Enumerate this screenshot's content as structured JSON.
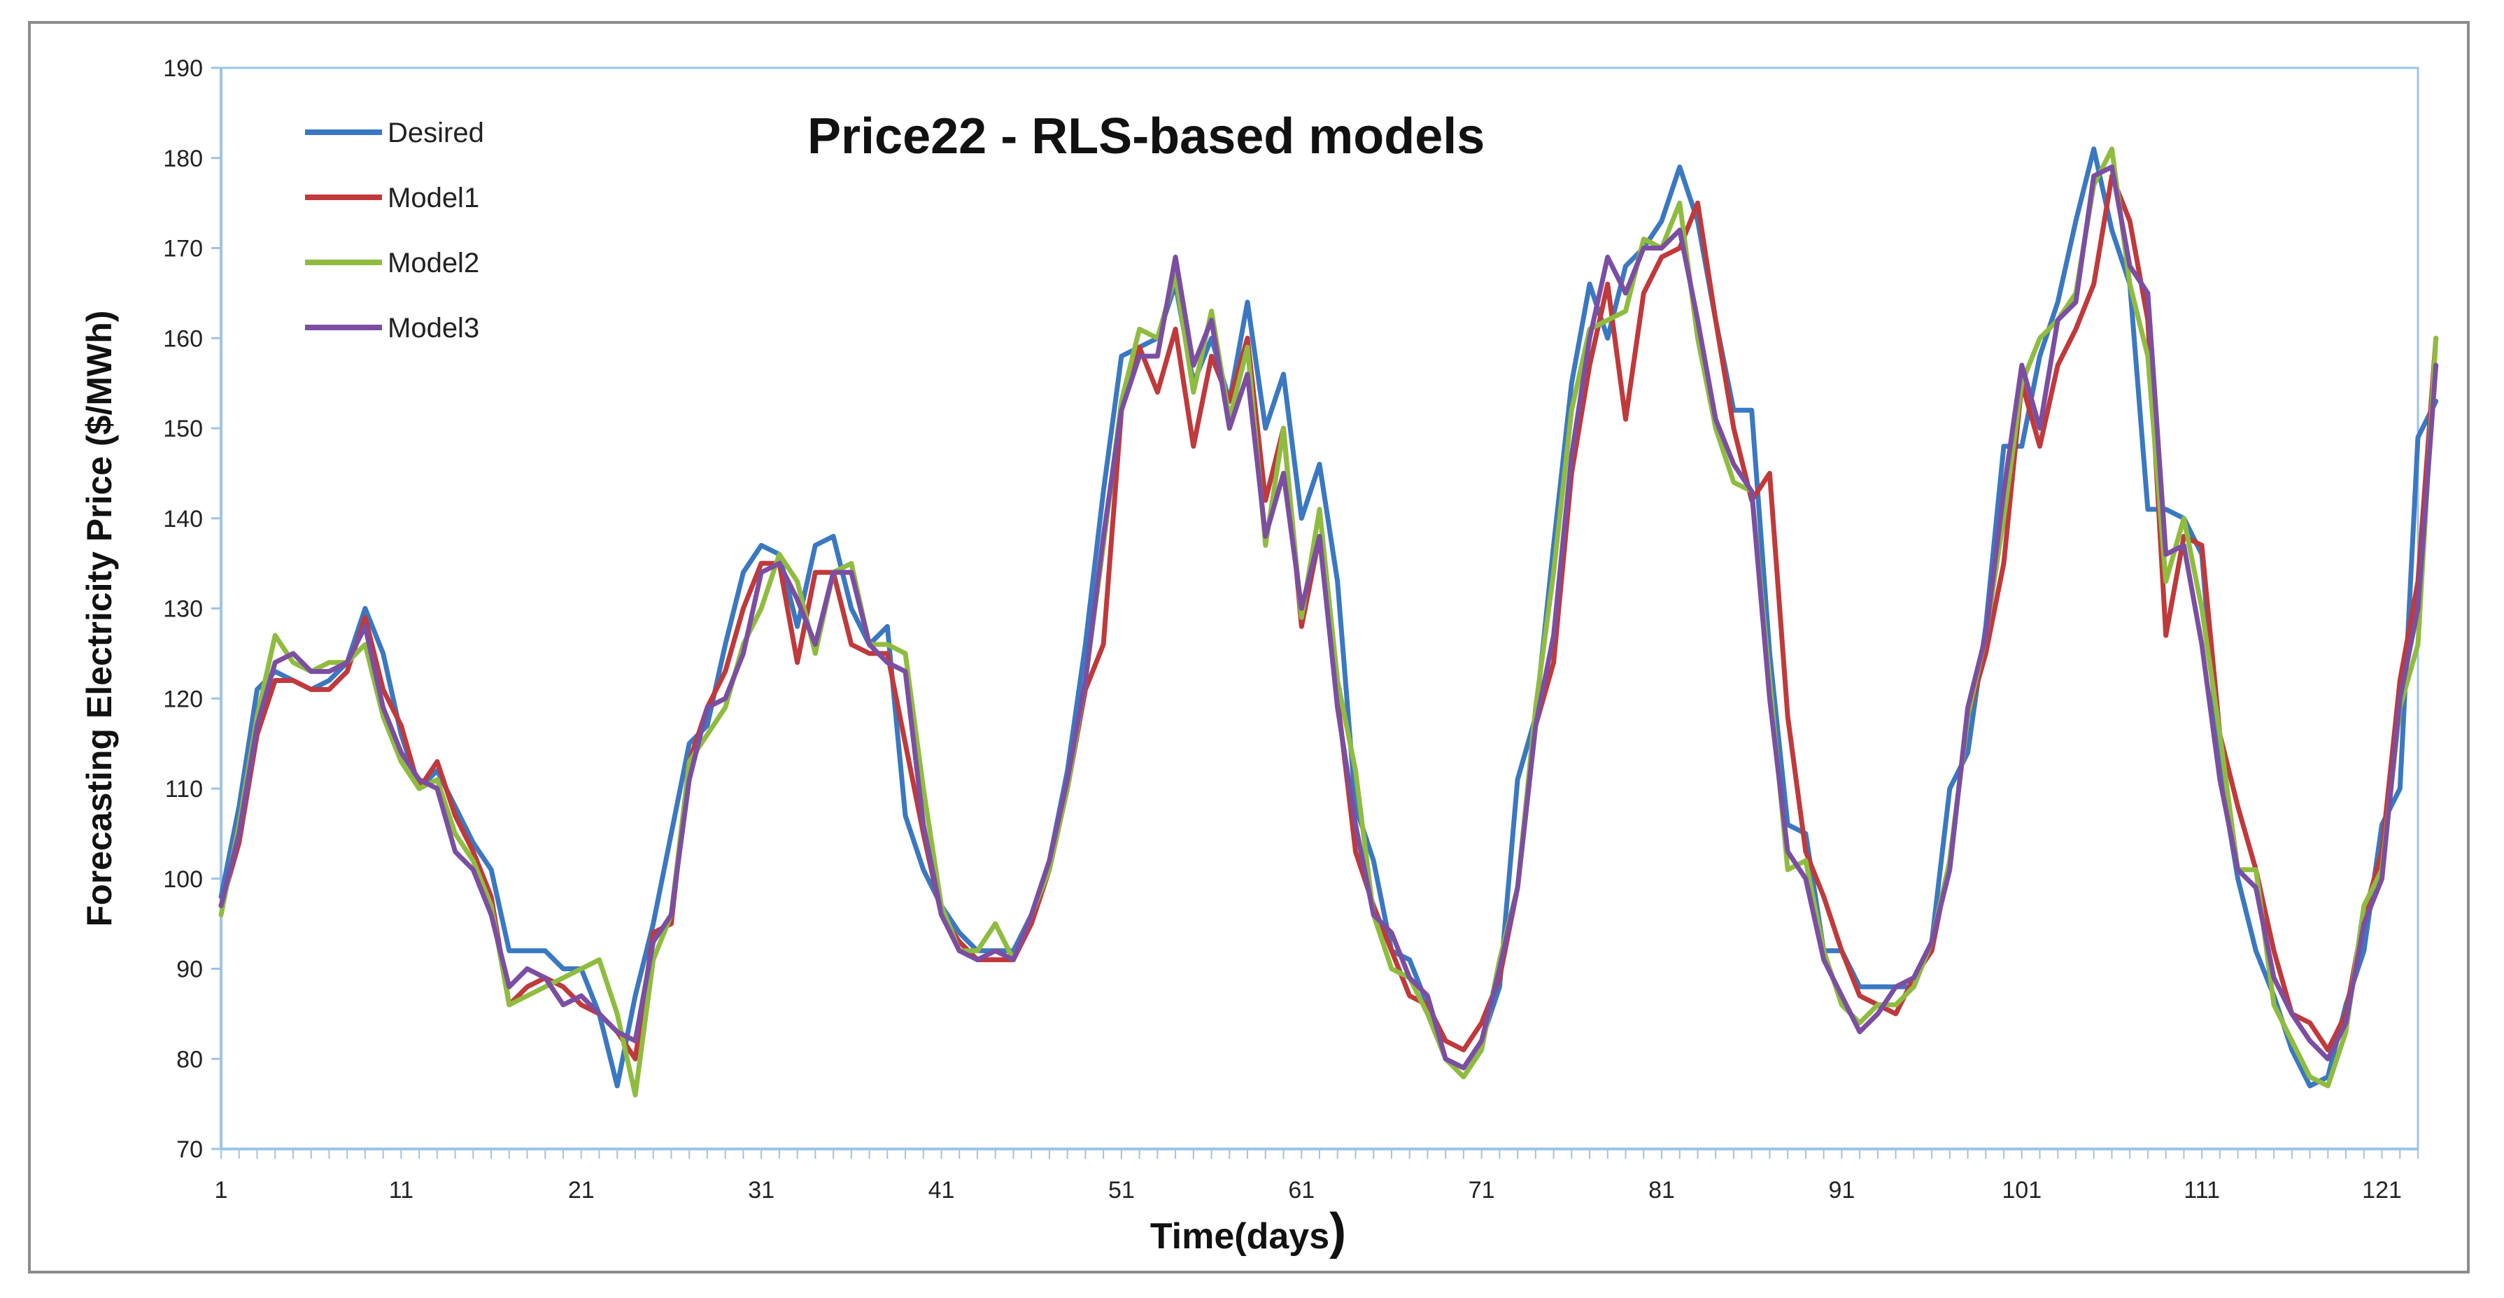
{
  "chart_data": {
    "type": "line",
    "title": "Price22  - RLS-based models",
    "xlabel": "Time(days",
    "xlabel_suffix": ")",
    "ylabel": "Forecasting Electricity Price ($/MWh)",
    "ylim": [
      70,
      190
    ],
    "xlim": [
      1,
      123
    ],
    "yticks": [
      70,
      80,
      90,
      100,
      110,
      120,
      130,
      140,
      150,
      160,
      170,
      180,
      190
    ],
    "xtick_labels": [
      1,
      11,
      21,
      31,
      41,
      51,
      61,
      71,
      81,
      91,
      101,
      111,
      121
    ],
    "grid": false,
    "legend_position": "top-left",
    "series": [
      {
        "name": "Desired",
        "color": "#3a78c2",
        "values": [
          98,
          108,
          121,
          123,
          122,
          121,
          122,
          124,
          130,
          125,
          116,
          110,
          112,
          108,
          104,
          101,
          92,
          92,
          92,
          90,
          90,
          85,
          77,
          87,
          95,
          105,
          115,
          117,
          126,
          134,
          137,
          136,
          128,
          137,
          138,
          130,
          126,
          128,
          107,
          101,
          97,
          94,
          92,
          92,
          92,
          96,
          102,
          112,
          126,
          143,
          158,
          159,
          160,
          166,
          155,
          160,
          153,
          164,
          150,
          156,
          140,
          146,
          133,
          108,
          102,
          92,
          91,
          86,
          80,
          79,
          82,
          88,
          111,
          118,
          137,
          155,
          166,
          160,
          168,
          170,
          173,
          179,
          173,
          162,
          152,
          152,
          125,
          106,
          105,
          92,
          92,
          88,
          88,
          88,
          88,
          93,
          110,
          114,
          128,
          148,
          148,
          158,
          164,
          173,
          181,
          172,
          166,
          141,
          141,
          140,
          136,
          112,
          100,
          92,
          87,
          81,
          77,
          78,
          86,
          92,
          106,
          110,
          149,
          153
        ]
      },
      {
        "name": "Model1",
        "color": "#c0393b",
        "values": [
          97,
          104,
          116,
          122,
          122,
          121,
          121,
          123,
          129,
          121,
          117,
          110,
          113,
          107,
          103,
          98,
          86,
          88,
          89,
          88,
          86,
          85,
          83,
          80,
          94,
          95,
          113,
          119,
          123,
          130,
          135,
          135,
          124,
          134,
          134,
          126,
          125,
          125,
          115,
          105,
          96,
          93,
          91,
          91,
          91,
          95,
          101,
          110,
          121,
          126,
          152,
          159,
          154,
          161,
          148,
          158,
          153,
          160,
          142,
          150,
          128,
          138,
          120,
          103,
          97,
          92,
          87,
          86,
          82,
          81,
          84,
          89,
          99,
          117,
          124,
          145,
          157,
          166,
          151,
          165,
          169,
          170,
          175,
          162,
          150,
          142,
          145,
          118,
          103,
          98,
          92,
          87,
          86,
          85,
          89,
          92,
          102,
          118,
          125,
          135,
          155,
          148,
          157,
          161,
          166,
          178,
          173,
          162,
          127,
          138,
          137,
          116,
          108,
          101,
          92,
          85,
          84,
          81,
          85,
          96,
          103,
          122,
          133,
          160
        ]
      },
      {
        "name": "Model2",
        "color": "#8fbc3f",
        "values": [
          96,
          106,
          118,
          127,
          124,
          123,
          124,
          124,
          126,
          118,
          113,
          110,
          111,
          105,
          102,
          97,
          86,
          87,
          88,
          89,
          90,
          91,
          85,
          76,
          91,
          96,
          113,
          116,
          119,
          126,
          130,
          136,
          133,
          125,
          134,
          135,
          126,
          126,
          125,
          110,
          97,
          92,
          92,
          95,
          91,
          96,
          101,
          110,
          122,
          137,
          153,
          161,
          160,
          167,
          154,
          163,
          151,
          159,
          137,
          150,
          129,
          141,
          122,
          112,
          96,
          90,
          89,
          85,
          80,
          78,
          81,
          91,
          99,
          119,
          134,
          152,
          161,
          162,
          163,
          171,
          170,
          175,
          160,
          150,
          144,
          143,
          122,
          101,
          102,
          92,
          86,
          84,
          86,
          86,
          88,
          93,
          102,
          118,
          127,
          140,
          155,
          160,
          162,
          165,
          177,
          181,
          166,
          158,
          133,
          140,
          130,
          116,
          101,
          101,
          86,
          82,
          78,
          77,
          83,
          97,
          101,
          119,
          126,
          160
        ]
      },
      {
        "name": "Model3",
        "color": "#7b4ea2",
        "values": [
          97,
          105,
          117,
          124,
          125,
          123,
          123,
          124,
          128,
          119,
          114,
          111,
          110,
          103,
          101,
          96,
          88,
          90,
          89,
          86,
          87,
          85,
          83,
          82,
          93,
          96,
          111,
          119,
          120,
          125,
          134,
          135,
          131,
          126,
          134,
          134,
          126,
          124,
          123,
          106,
          96,
          92,
          91,
          92,
          91,
          96,
          102,
          111,
          122,
          138,
          152,
          158,
          158,
          169,
          157,
          162,
          150,
          156,
          138,
          145,
          130,
          138,
          119,
          106,
          96,
          94,
          89,
          87,
          80,
          79,
          82,
          90,
          99,
          117,
          127,
          147,
          160,
          169,
          165,
          170,
          170,
          172,
          162,
          151,
          146,
          143,
          120,
          103,
          100,
          91,
          87,
          83,
          85,
          88,
          89,
          93,
          101,
          119,
          127,
          143,
          157,
          150,
          162,
          164,
          178,
          179,
          168,
          165,
          136,
          137,
          126,
          111,
          101,
          99,
          89,
          85,
          82,
          80,
          84,
          95,
          100,
          120,
          130,
          157
        ]
      }
    ]
  }
}
